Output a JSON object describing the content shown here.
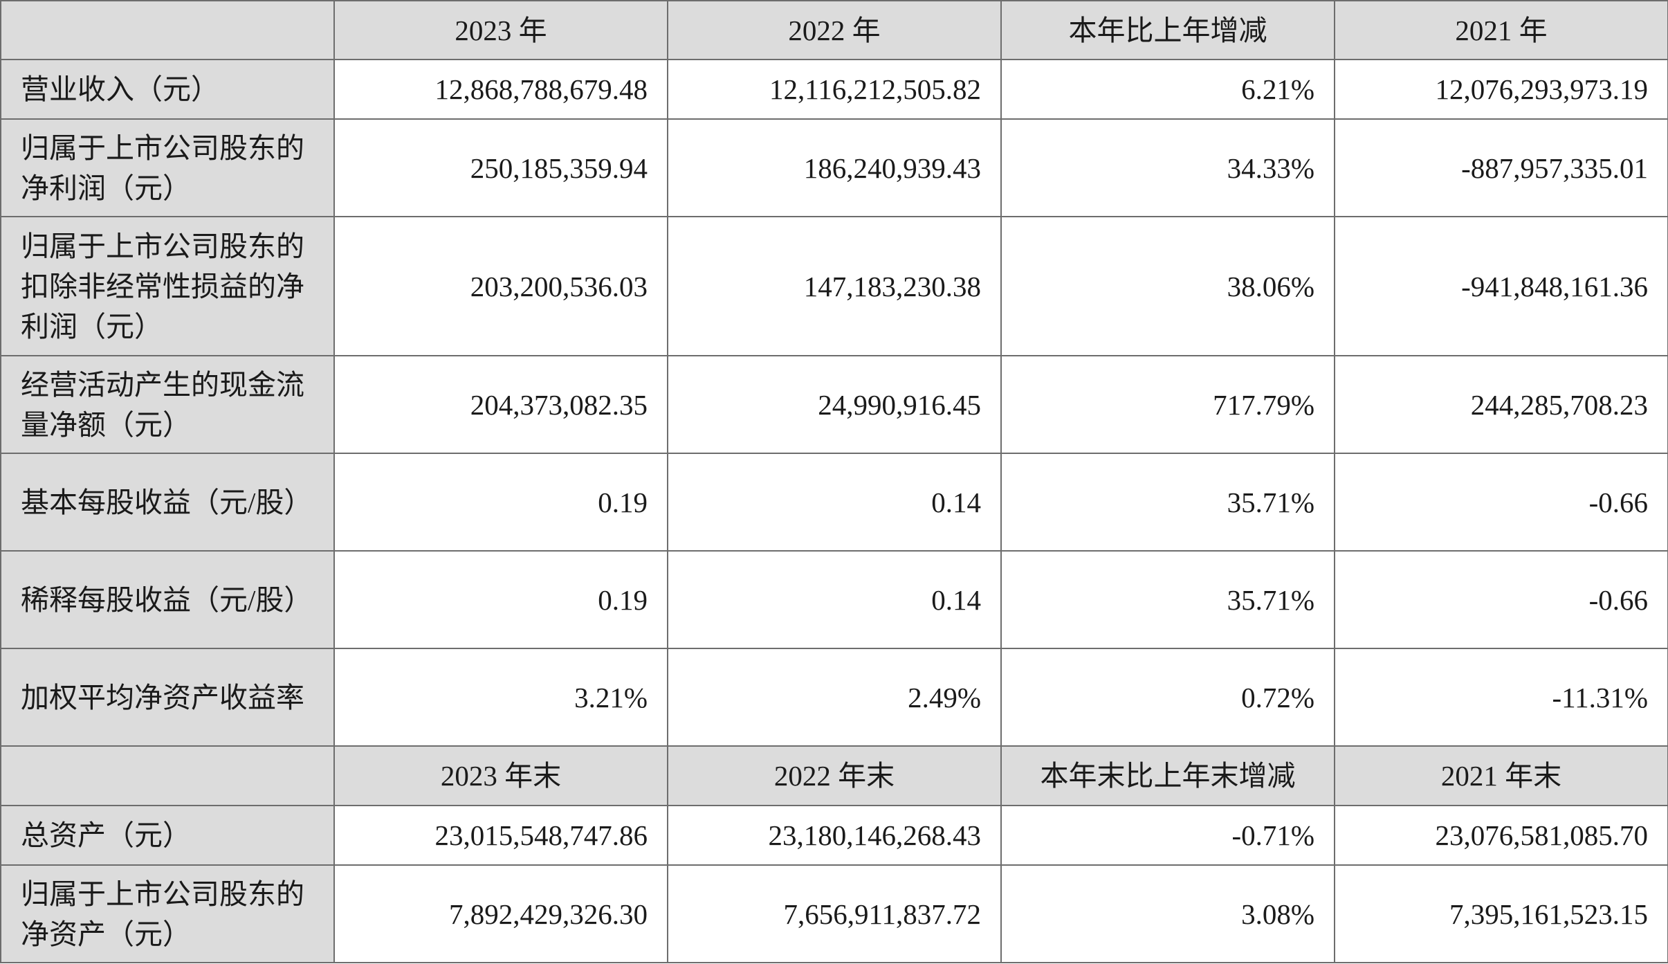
{
  "header_income": {
    "corner": "",
    "columns": [
      "2023 年",
      "2022 年",
      "本年比上年增减",
      "2021 年"
    ]
  },
  "income_rows": [
    {
      "label": "营业收入（元）",
      "values": [
        "12,868,788,679.48",
        "12,116,212,505.82",
        "6.21%",
        "12,076,293,973.19"
      ]
    },
    {
      "label": "归属于上市公司股东的净利润（元）",
      "values": [
        "250,185,359.94",
        "186,240,939.43",
        "34.33%",
        "-887,957,335.01"
      ]
    },
    {
      "label": "归属于上市公司股东的扣除非经常性损益的净利润（元）",
      "values": [
        "203,200,536.03",
        "147,183,230.38",
        "38.06%",
        "-941,848,161.36"
      ]
    },
    {
      "label": "经营活动产生的现金流量净额（元）",
      "values": [
        "204,373,082.35",
        "24,990,916.45",
        "717.79%",
        "244,285,708.23"
      ]
    },
    {
      "label": "基本每股收益（元/股）",
      "values": [
        "0.19",
        "0.14",
        "35.71%",
        "-0.66"
      ]
    },
    {
      "label": "稀释每股收益（元/股）",
      "values": [
        "0.19",
        "0.14",
        "35.71%",
        "-0.66"
      ]
    },
    {
      "label": "加权平均净资产收益率",
      "values": [
        "3.21%",
        "2.49%",
        "0.72%",
        "-11.31%"
      ]
    }
  ],
  "header_balance": {
    "corner": "",
    "columns": [
      "2023 年末",
      "2022 年末",
      "本年末比上年末增减",
      "2021 年末"
    ]
  },
  "balance_rows": [
    {
      "label": "总资产（元）",
      "values": [
        "23,015,548,747.86",
        "23,180,146,268.43",
        "-0.71%",
        "23,076,581,085.70"
      ]
    },
    {
      "label": "归属于上市公司股东的净资产（元）",
      "values": [
        "7,892,429,326.30",
        "7,656,911,837.72",
        "3.08%",
        "7,395,161,523.15"
      ]
    }
  ]
}
